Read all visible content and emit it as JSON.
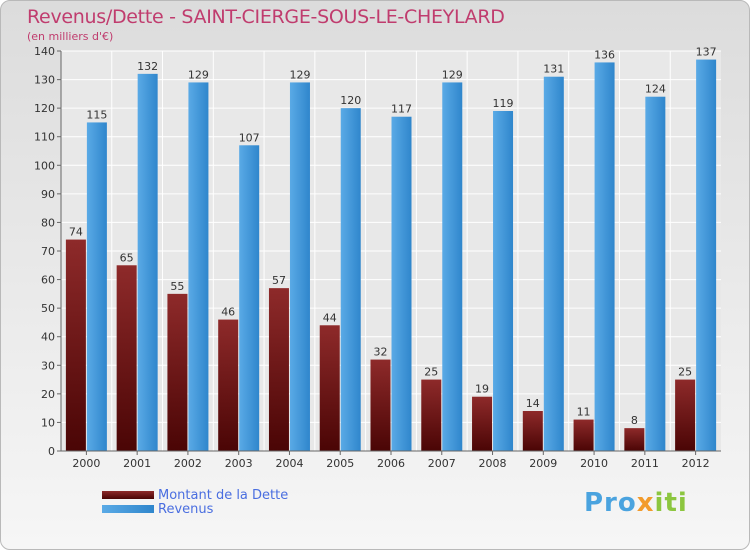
{
  "chart_data": {
    "type": "bar",
    "title": "Revenus/Dette - SAINT-CIERGE-SOUS-LE-CHEYLARD",
    "subtitle": "(en milliers d'€)",
    "categories": [
      "2000",
      "2001",
      "2002",
      "2003",
      "2004",
      "2005",
      "2006",
      "2007",
      "2008",
      "2009",
      "2010",
      "2011",
      "2012"
    ],
    "series": [
      {
        "name": "Montant de la Dette",
        "color": "#7a1a1a",
        "values": [
          74,
          65,
          55,
          46,
          57,
          44,
          32,
          25,
          19,
          14,
          11,
          8,
          25
        ]
      },
      {
        "name": "Revenus",
        "color": "#3d97dc",
        "values": [
          115,
          132,
          129,
          107,
          129,
          120,
          117,
          129,
          119,
          131,
          136,
          124,
          137
        ]
      }
    ],
    "ylim": [
      0,
      140
    ],
    "yticks": [
      0,
      10,
      20,
      30,
      40,
      50,
      60,
      70,
      80,
      90,
      100,
      110,
      120,
      130,
      140
    ],
    "grid": true,
    "legend_position": "bottom-left"
  },
  "logo": {
    "part1": "Pro",
    "part2": "x",
    "part3": "iti"
  }
}
